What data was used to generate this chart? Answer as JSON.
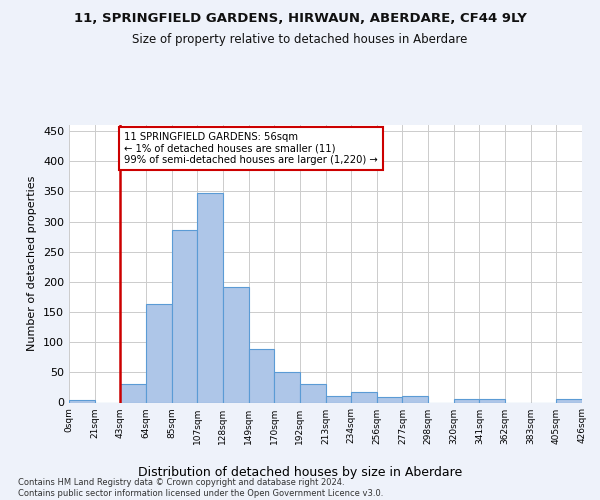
{
  "title": "11, SPRINGFIELD GARDENS, HIRWAUN, ABERDARE, CF44 9LY",
  "subtitle": "Size of property relative to detached houses in Aberdare",
  "xlabel": "Distribution of detached houses by size in Aberdare",
  "ylabel": "Number of detached properties",
  "bar_color": "#aec6e8",
  "bar_edge_color": "#5b9bd5",
  "annotation_line1": "11 SPRINGFIELD GARDENS: 56sqm",
  "annotation_line2": "← 1% of detached houses are smaller (11)",
  "annotation_line3": "99% of semi-detached houses are larger (1,220) →",
  "annotation_box_color": "#ffffff",
  "annotation_box_edge_color": "#cc0000",
  "property_line_color": "#cc0000",
  "footer_text": "Contains HM Land Registry data © Crown copyright and database right 2024.\nContains public sector information licensed under the Open Government Licence v3.0.",
  "ylim": [
    0,
    460
  ],
  "yticks": [
    0,
    50,
    100,
    150,
    200,
    250,
    300,
    350,
    400,
    450
  ],
  "bin_labels": [
    "0sqm",
    "21sqm",
    "43sqm",
    "64sqm",
    "85sqm",
    "107sqm",
    "128sqm",
    "149sqm",
    "170sqm",
    "192sqm",
    "213sqm",
    "234sqm",
    "256sqm",
    "277sqm",
    "298sqm",
    "320sqm",
    "341sqm",
    "362sqm",
    "383sqm",
    "405sqm",
    "426sqm"
  ],
  "bar_heights": [
    4,
    0,
    31,
    163,
    286,
    347,
    192,
    89,
    50,
    31,
    11,
    17,
    9,
    10,
    0,
    5,
    5,
    0,
    0,
    5
  ],
  "background_color": "#eef2fa",
  "plot_background_color": "#ffffff",
  "grid_color": "#cccccc",
  "property_line_index": 2.0
}
